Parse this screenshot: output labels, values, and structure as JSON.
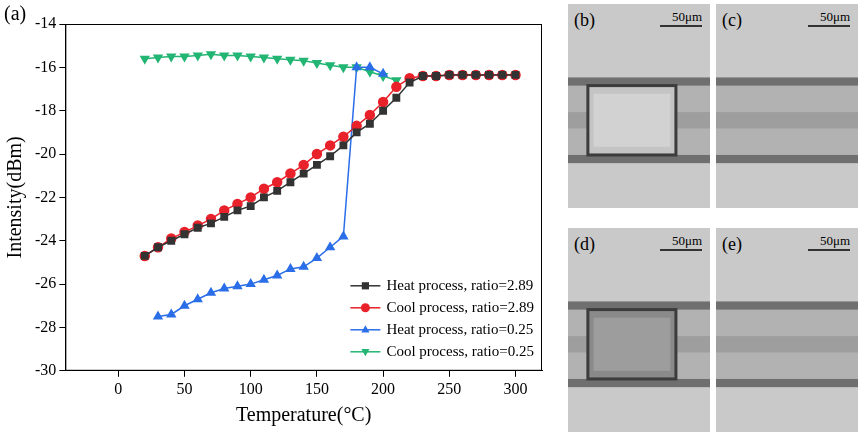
{
  "chart_data": {
    "type": "line",
    "panel_label": "(a)",
    "x_label": "Temperature(°C)",
    "y_label": "Intensity(dBm)",
    "xlim": [
      -40,
      320
    ],
    "xticks": [
      0,
      50,
      100,
      150,
      200,
      250,
      300
    ],
    "ylim": [
      -30,
      -14
    ],
    "yticks": [
      -30,
      -28,
      -26,
      -24,
      -22,
      -20,
      -18,
      -16,
      -14
    ],
    "grid": false,
    "legend": "lower right",
    "series": [
      {
        "name": "Heat process, ratio=2.89",
        "color": "#333333",
        "marker": "square",
        "line_style": "solid",
        "x": [
          20,
          30,
          40,
          50,
          60,
          70,
          80,
          90,
          100,
          110,
          120,
          130,
          140,
          150,
          160,
          170,
          180,
          190,
          200,
          210,
          220,
          230,
          240,
          250,
          260,
          270,
          280,
          290,
          300
        ],
        "values": [
          -24.7,
          -24.3,
          -24.0,
          -23.7,
          -23.4,
          -23.2,
          -22.9,
          -22.6,
          -22.4,
          -22.0,
          -21.7,
          -21.3,
          -20.9,
          -20.5,
          -20.1,
          -19.6,
          -19.0,
          -18.6,
          -18.0,
          -17.4,
          -16.7,
          -16.4,
          -16.4,
          -16.35,
          -16.35,
          -16.35,
          -16.35,
          -16.35,
          -16.35
        ]
      },
      {
        "name": "Cool process, ratio=2.89",
        "color": "#e8212a",
        "marker": "circle",
        "line_style": "solid",
        "x": [
          20,
          30,
          40,
          50,
          60,
          70,
          80,
          90,
          100,
          110,
          120,
          130,
          140,
          150,
          160,
          170,
          180,
          190,
          200,
          210,
          220,
          230,
          240,
          250,
          260,
          270,
          280,
          290,
          300
        ],
        "values": [
          -24.7,
          -24.3,
          -23.9,
          -23.6,
          -23.3,
          -23.0,
          -22.6,
          -22.3,
          -22.0,
          -21.6,
          -21.3,
          -20.9,
          -20.5,
          -20.0,
          -19.6,
          -19.2,
          -18.7,
          -18.2,
          -17.6,
          -16.9,
          -16.5,
          -16.4,
          -16.4,
          -16.35,
          -16.35,
          -16.35,
          -16.35,
          -16.35,
          -16.35
        ]
      },
      {
        "name": "Heat process, ratio=0.25",
        "color": "#2a6ee8",
        "marker": "triangle",
        "line_style": "solid",
        "x": [
          30,
          40,
          50,
          60,
          70,
          80,
          90,
          100,
          110,
          120,
          130,
          140,
          150,
          160,
          170,
          180,
          190,
          200
        ],
        "values": [
          -27.5,
          -27.4,
          -27.0,
          -26.7,
          -26.4,
          -26.2,
          -26.1,
          -26.0,
          -25.8,
          -25.6,
          -25.3,
          -25.2,
          -24.8,
          -24.3,
          -23.8,
          -16.0,
          -16.0,
          -16.3
        ]
      },
      {
        "name": "Cool process, ratio=0.25",
        "color": "#22b573",
        "marker": "triangle_down",
        "line_style": "solid",
        "x": [
          20,
          30,
          40,
          50,
          60,
          70,
          80,
          90,
          100,
          110,
          120,
          130,
          140,
          150,
          160,
          170,
          180,
          190,
          200,
          210
        ],
        "values": [
          -15.6,
          -15.55,
          -15.5,
          -15.5,
          -15.45,
          -15.4,
          -15.45,
          -15.45,
          -15.5,
          -15.55,
          -15.6,
          -15.65,
          -15.7,
          -15.8,
          -15.9,
          -16.0,
          -16.0,
          -16.2,
          -16.4,
          -16.6
        ]
      }
    ]
  },
  "images": [
    {
      "label": "(b)",
      "scale_bar": "50μm"
    },
    {
      "label": "(c)",
      "scale_bar": "50μm"
    },
    {
      "label": "(d)",
      "scale_bar": "50μm"
    },
    {
      "label": "(e)",
      "scale_bar": "50μm"
    }
  ]
}
